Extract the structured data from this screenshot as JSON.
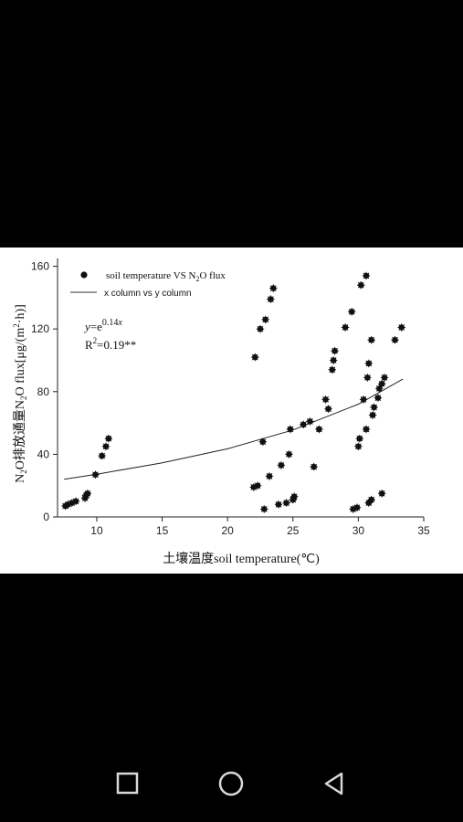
{
  "chart_data": {
    "type": "scatter",
    "title": "",
    "xlabel": "土壤温度soil temperature(℃)",
    "ylabel": "N2O排放通量N2O flux[μg/(m2·h)]",
    "xlim": [
      7,
      35
    ],
    "ylim": [
      0,
      165
    ],
    "xticks": [
      10,
      15,
      20,
      25,
      30,
      35
    ],
    "yticks": [
      0,
      40,
      80,
      120,
      160
    ],
    "grid": false,
    "legend_position": "top-left",
    "series": [
      {
        "name": "soil temperature VS N2O flux",
        "kind": "points",
        "points": [
          [
            7.6,
            7
          ],
          [
            7.8,
            8
          ],
          [
            8.1,
            9
          ],
          [
            8.4,
            10
          ],
          [
            9.1,
            12
          ],
          [
            9.2,
            14
          ],
          [
            9.3,
            15
          ],
          [
            9.9,
            27
          ],
          [
            10.4,
            39
          ],
          [
            10.7,
            45
          ],
          [
            10.9,
            50
          ],
          [
            22.1,
            102
          ],
          [
            22.5,
            120
          ],
          [
            22.9,
            126
          ],
          [
            23.3,
            139
          ],
          [
            23.5,
            146
          ],
          [
            22.0,
            19
          ],
          [
            22.3,
            20
          ],
          [
            22.7,
            48
          ],
          [
            22.8,
            5
          ],
          [
            23.2,
            26
          ],
          [
            23.9,
            8
          ],
          [
            24.1,
            33
          ],
          [
            24.5,
            9
          ],
          [
            24.7,
            40
          ],
          [
            24.8,
            56
          ],
          [
            25.0,
            11
          ],
          [
            25.1,
            13
          ],
          [
            25.8,
            59
          ],
          [
            26.3,
            61
          ],
          [
            26.6,
            32
          ],
          [
            27.0,
            56
          ],
          [
            27.5,
            75
          ],
          [
            27.7,
            69
          ],
          [
            28.0,
            94
          ],
          [
            28.1,
            100
          ],
          [
            28.2,
            106
          ],
          [
            29.0,
            121
          ],
          [
            29.5,
            131
          ],
          [
            29.6,
            5
          ],
          [
            29.9,
            6
          ],
          [
            30.0,
            45
          ],
          [
            30.1,
            50
          ],
          [
            30.2,
            148
          ],
          [
            30.4,
            75
          ],
          [
            30.6,
            154
          ],
          [
            30.6,
            56
          ],
          [
            30.7,
            89
          ],
          [
            30.8,
            98
          ],
          [
            30.8,
            9
          ],
          [
            31.0,
            11
          ],
          [
            31.0,
            113
          ],
          [
            31.1,
            65
          ],
          [
            31.2,
            70
          ],
          [
            31.5,
            76
          ],
          [
            31.6,
            82
          ],
          [
            31.8,
            15
          ],
          [
            31.8,
            85
          ],
          [
            32.0,
            89
          ],
          [
            32.8,
            113
          ],
          [
            33.3,
            121
          ]
        ]
      },
      {
        "name": "x column vs y column",
        "kind": "fit-line",
        "points": [
          [
            7.5,
            24
          ],
          [
            10,
            27.3
          ],
          [
            15,
            34.5
          ],
          [
            20,
            43.5
          ],
          [
            25,
            55.5
          ],
          [
            30,
            72
          ],
          [
            33.4,
            88
          ]
        ]
      }
    ],
    "annotations": [
      "y=e0.14x",
      "R2=0.19**"
    ]
  },
  "nav": {
    "back_icon": "back-triangle-icon",
    "home_icon": "home-circle-icon",
    "recents_icon": "recents-square-icon"
  }
}
